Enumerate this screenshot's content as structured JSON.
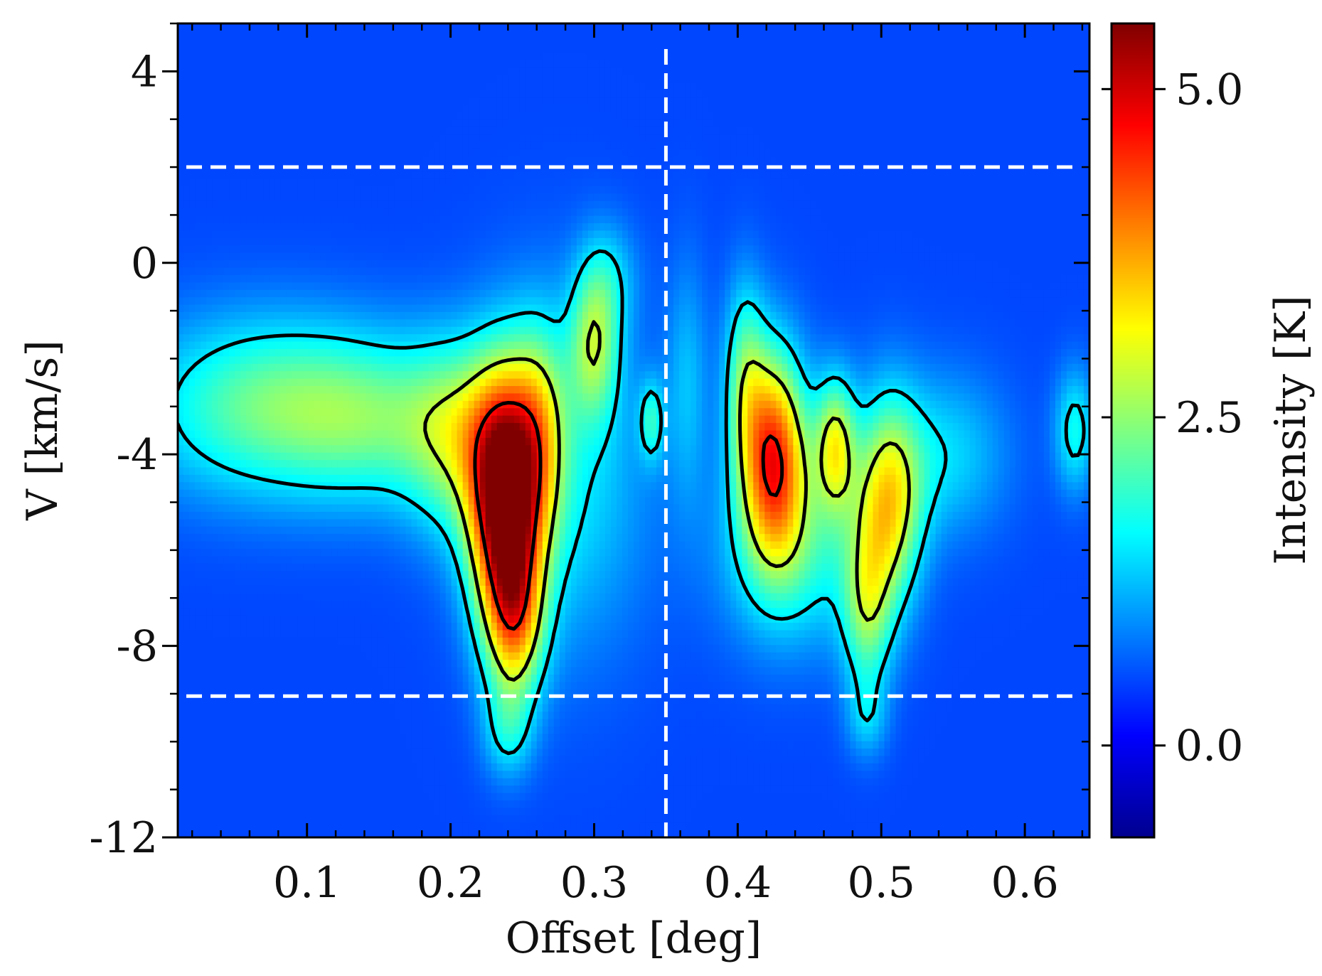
{
  "chart_data": {
    "type": "heatmap",
    "title": "",
    "xlabel": "Offset [deg]",
    "ylabel": "V [km/s]",
    "xlim": [
      0.01,
      0.645
    ],
    "ylim": [
      -12,
      5
    ],
    "x_ticks": [
      0.1,
      0.2,
      0.3,
      0.4,
      0.5,
      0.6
    ],
    "x_tick_labels": [
      "0.1",
      "0.2",
      "0.3",
      "0.4",
      "0.5",
      "0.6"
    ],
    "y_ticks": [
      4,
      0,
      -4,
      -8,
      -12
    ],
    "y_tick_labels": [
      "4",
      "0",
      "-4",
      "-8",
      "-12"
    ],
    "colorbar": {
      "label": "Intensity [K]",
      "range": [
        -0.7,
        5.5
      ],
      "ticks": [
        0.0,
        2.5,
        5.0
      ],
      "tick_labels": [
        "0.0",
        "2.5",
        "5.0"
      ],
      "colormap": [
        "#00008f",
        "#0000ff",
        "#0080ff",
        "#00ffff",
        "#80ff80",
        "#ffff00",
        "#ff8000",
        "#ff0000",
        "#800000"
      ]
    },
    "reference_lines": [
      {
        "orientation": "horizontal",
        "value": 2.0,
        "style": "dashed",
        "color": "#ffffff"
      },
      {
        "orientation": "horizontal",
        "value": -9.05,
        "style": "dashed",
        "color": "#ffffff"
      },
      {
        "orientation": "vertical",
        "value": 0.35,
        "style": "dashed",
        "color": "#ffffff"
      }
    ],
    "background_level": 0.5,
    "emission_components": [
      {
        "x": 0.238,
        "v": -5.0,
        "sx": 0.017,
        "sv": 1.8,
        "peak": 5.0
      },
      {
        "x": 0.245,
        "v": -7.5,
        "sx": 0.014,
        "sv": 1.2,
        "peak": 2.2
      },
      {
        "x": 0.262,
        "v": -3.5,
        "sx": 0.013,
        "sv": 1.5,
        "peak": 1.6
      },
      {
        "x": 0.205,
        "v": -3.7,
        "sx": 0.025,
        "sv": 1.4,
        "peak": 1.6
      },
      {
        "x": 0.3,
        "v": -1.7,
        "sx": 0.012,
        "sv": 1.1,
        "peak": 1.8
      },
      {
        "x": 0.15,
        "v": -3.3,
        "sx": 0.045,
        "sv": 1.2,
        "peak": 1.2
      },
      {
        "x": 0.07,
        "v": -3.0,
        "sx": 0.06,
        "sv": 1.3,
        "peak": 1.7
      },
      {
        "x": 0.28,
        "v": -4.5,
        "sx": 0.04,
        "sv": 2.5,
        "peak": 1.0
      },
      {
        "x": 0.24,
        "v": -9.8,
        "sx": 0.012,
        "sv": 0.7,
        "peak": 0.9
      },
      {
        "x": 0.31,
        "v": -0.3,
        "sx": 0.014,
        "sv": 0.8,
        "peak": 0.7
      },
      {
        "x": 0.425,
        "v": -4.0,
        "sx": 0.016,
        "sv": 1.5,
        "peak": 3.8
      },
      {
        "x": 0.405,
        "v": -2.3,
        "sx": 0.01,
        "sv": 1.4,
        "peak": 1.4
      },
      {
        "x": 0.468,
        "v": -3.8,
        "sx": 0.01,
        "sv": 1.0,
        "peak": 2.3
      },
      {
        "x": 0.505,
        "v": -5.0,
        "sx": 0.016,
        "sv": 1.5,
        "peak": 2.6
      },
      {
        "x": 0.49,
        "v": -7.3,
        "sx": 0.012,
        "sv": 1.2,
        "peak": 1.6
      },
      {
        "x": 0.545,
        "v": -4.0,
        "sx": 0.03,
        "sv": 1.2,
        "peak": 0.9
      },
      {
        "x": 0.44,
        "v": -6.0,
        "sx": 0.035,
        "sv": 1.4,
        "peak": 1.3
      },
      {
        "x": 0.49,
        "v": -9.5,
        "sx": 0.01,
        "sv": 0.6,
        "peak": 0.7
      },
      {
        "x": 0.635,
        "v": -3.5,
        "sx": 0.01,
        "sv": 0.9,
        "peak": 1.2
      },
      {
        "x": 0.34,
        "v": -3.3,
        "sx": 0.006,
        "sv": 0.6,
        "peak": 1.2
      },
      {
        "x": 0.365,
        "v": -2.5,
        "sx": 0.01,
        "sv": 1.8,
        "peak": 0.7
      }
    ],
    "contour_levels_K": [
      1.5,
      2.8,
      4.6
    ]
  }
}
